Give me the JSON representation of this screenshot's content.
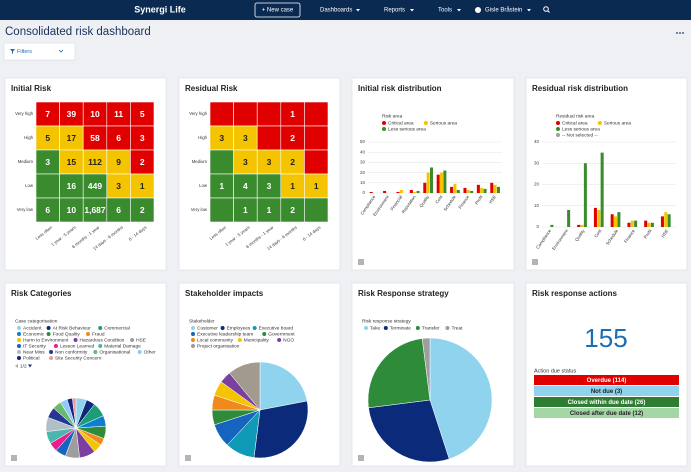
{
  "nav": {
    "logo": "Synergi Life",
    "new_case": "+ New case",
    "menu": [
      "Dashboards",
      "Reports",
      "Tools"
    ],
    "user": "Gisle Bråstein"
  },
  "page": {
    "title": "Consolidated risk dashboard",
    "filters": "Filters"
  },
  "widgets": [
    {
      "title": "Initial Risk",
      "type": "matrix",
      "rows": [
        "Very high",
        "High",
        "Medium",
        "Low",
        "Very low"
      ],
      "columns": [
        "Less often",
        "1 year - 5 years",
        "6 months - 1 year",
        "14 days - 6 months",
        "0 - 14 days"
      ],
      "cells": [
        [
          7,
          39,
          10,
          11,
          5
        ],
        [
          5,
          17,
          58,
          6,
          3
        ],
        [
          3,
          15,
          112,
          9,
          2
        ],
        [
          null,
          16,
          449,
          3,
          1
        ],
        [
          6,
          10,
          {
            "value": 1687,
            "label": "1,687"
          },
          6,
          2
        ]
      ],
      "colors": [
        [
          "#e00000",
          "#e00000",
          "#e00000",
          "#e00000",
          "#e00000"
        ],
        [
          "#f5c400",
          "#f5c400",
          "#e00000",
          "#e00000",
          "#e00000"
        ],
        [
          "#3a8a2e",
          "#f5c400",
          "#f5c400",
          "#f5c400",
          "#e00000"
        ],
        [
          "#3a8a2e",
          "#3a8a2e",
          "#3a8a2e",
          "#f5c400",
          "#f5c400"
        ],
        [
          "#3a8a2e",
          "#3a8a2e",
          "#3a8a2e",
          "#3a8a2e",
          "#3a8a2e"
        ]
      ]
    },
    {
      "title": "Residual Risk",
      "type": "matrix",
      "rows": [
        "Very high",
        "High",
        "Medium",
        "Low",
        "Very low"
      ],
      "columns": [
        "Less often",
        "1 year - 5 years",
        "6 months - 1 year",
        "14 days - 6 months",
        "0 - 14 days"
      ],
      "cells": [
        [
          null,
          null,
          null,
          1,
          null
        ],
        [
          3,
          3,
          null,
          2,
          null
        ],
        [
          null,
          3,
          3,
          2,
          null
        ],
        [
          1,
          4,
          3,
          1,
          1
        ],
        [
          null,
          1,
          1,
          2,
          null
        ]
      ],
      "colors": [
        [
          "#e00000",
          "#e00000",
          "#e00000",
          "#e00000",
          "#e00000"
        ],
        [
          "#f5c400",
          "#f5c400",
          "#e00000",
          "#e00000",
          "#e00000"
        ],
        [
          "#3a8a2e",
          "#f5c400",
          "#f5c400",
          "#f5c400",
          "#e00000"
        ],
        [
          "#3a8a2e",
          "#3a8a2e",
          "#3a8a2e",
          "#f5c400",
          "#f5c400"
        ],
        [
          "#3a8a2e",
          "#3a8a2e",
          "#3a8a2e",
          "#3a8a2e",
          "#3a8a2e"
        ]
      ]
    },
    {
      "title": "Initial risk distribution",
      "type": "bar",
      "legend_title": "Risk area",
      "categories": [
        "Compliance",
        "Environment",
        "Financial",
        "Reputation",
        "Quality",
        "Cost",
        "Schedule",
        "Finance",
        "Profit",
        "HSE"
      ],
      "series": [
        {
          "name": "Critical area",
          "color": "#e00000",
          "values": [
            1,
            2,
            1,
            3,
            10,
            18,
            6,
            5,
            8,
            10
          ]
        },
        {
          "name": "Serious area",
          "color": "#f5c400",
          "values": [
            0,
            0,
            3,
            1,
            20,
            20,
            9,
            3,
            5,
            8
          ]
        },
        {
          "name": "Less serious area",
          "color": "#3a8a2e",
          "values": [
            0,
            0,
            0,
            2,
            25,
            22,
            3,
            2,
            4,
            6
          ]
        }
      ],
      "ylim": [
        0,
        50
      ],
      "yticks": [
        0,
        10,
        20,
        30,
        40,
        50
      ]
    },
    {
      "title": "Residual risk distribution",
      "type": "bar",
      "legend_title": "Residual risk area",
      "categories": [
        "Compliance",
        "Environment",
        "Quality",
        "Cost",
        "Schedule",
        "Finance",
        "Profit",
        "HSE"
      ],
      "series": [
        {
          "name": "Critical area",
          "color": "#e00000",
          "values": [
            0,
            0,
            1,
            9,
            6,
            2,
            3,
            5
          ]
        },
        {
          "name": "Serious area",
          "color": "#f5c400",
          "values": [
            0,
            0,
            1,
            8,
            5,
            3,
            2,
            7
          ]
        },
        {
          "name": "Less serious area",
          "color": "#3a8a2e",
          "values": [
            1,
            8,
            30,
            35,
            7,
            3,
            2,
            6
          ]
        },
        {
          "name": "-- Not selected --",
          "color": "#9e9e9e",
          "values": [
            0,
            0,
            0,
            0,
            0,
            0,
            0,
            0
          ]
        }
      ],
      "ylim": [
        0,
        40
      ],
      "yticks": [
        0,
        10,
        20,
        30,
        40
      ]
    },
    {
      "title": "Risk Categories",
      "type": "pie",
      "legend_title": "Case categorisation",
      "pager": "1/2",
      "categories": [
        "Accident",
        "At Risk Behaviour",
        "Commercial",
        "Economic",
        "Food Quality",
        "Fraud",
        "Harm to Environment",
        "Hazardous Condition",
        "HSE",
        "IT Security",
        "Lesson Learned",
        "Material Damage",
        "Near Miss",
        "Non conformity",
        "Organisational",
        "Other",
        "Political",
        "Site Security Concern"
      ],
      "values": [
        6,
        5,
        8,
        6,
        7,
        4,
        5,
        9,
        8,
        6,
        5,
        7,
        8,
        6,
        5,
        4,
        3,
        2
      ],
      "colors": [
        "#8fd3ef",
        "#0b2a7a",
        "#1b9e77",
        "#0c7fd1",
        "#2e8b3a",
        "#f08a1c",
        "#f5c400",
        "#7b3fa0",
        "#9e9e9e",
        "#1565c0",
        "#e91e8c",
        "#4db6ac",
        "#b0bec5",
        "#283593",
        "#66bb6a",
        "#90caf9",
        "#1a237e",
        "#ef9a9a"
      ]
    },
    {
      "title": "Stakeholder impacts",
      "type": "pie",
      "legend_title": "Stakeholder",
      "categories": [
        "Customer",
        "Employees",
        "Executive board",
        "Executive leadership team",
        "Government",
        "Local community",
        "Municipality",
        "NGO",
        "Project organisation"
      ],
      "values": [
        22,
        30,
        10,
        8,
        5,
        5,
        5,
        4,
        11
      ],
      "colors": [
        "#8fd3ef",
        "#0b2a7a",
        "#0f9bb8",
        "#1565c0",
        "#2e8b3a",
        "#f08a1c",
        "#f5c400",
        "#7b3fa0",
        "#a39a8e"
      ]
    },
    {
      "title": "Risk Response strategy",
      "type": "pie",
      "legend_title": "Risk response strategy",
      "categories": [
        "Take",
        "Terminate",
        "Transfer",
        "Treat"
      ],
      "values": [
        45,
        28,
        25,
        2
      ],
      "colors": [
        "#8fd3ef",
        "#0b2a7a",
        "#2e8b3a",
        "#9e9e9e"
      ]
    },
    {
      "title": "Risk response actions",
      "type": "actions",
      "total": 155,
      "status_title": "Action due status",
      "statuses": [
        {
          "label": "Overdue (114)",
          "color": "#e00000"
        },
        {
          "label": "Not due (3)",
          "color": "#8fd3ef"
        },
        {
          "label": "Closed within due date (26)",
          "color": "#2e7d32"
        },
        {
          "label": "Closed after due date (12)",
          "color": "#a5d6a7"
        }
      ]
    }
  ]
}
